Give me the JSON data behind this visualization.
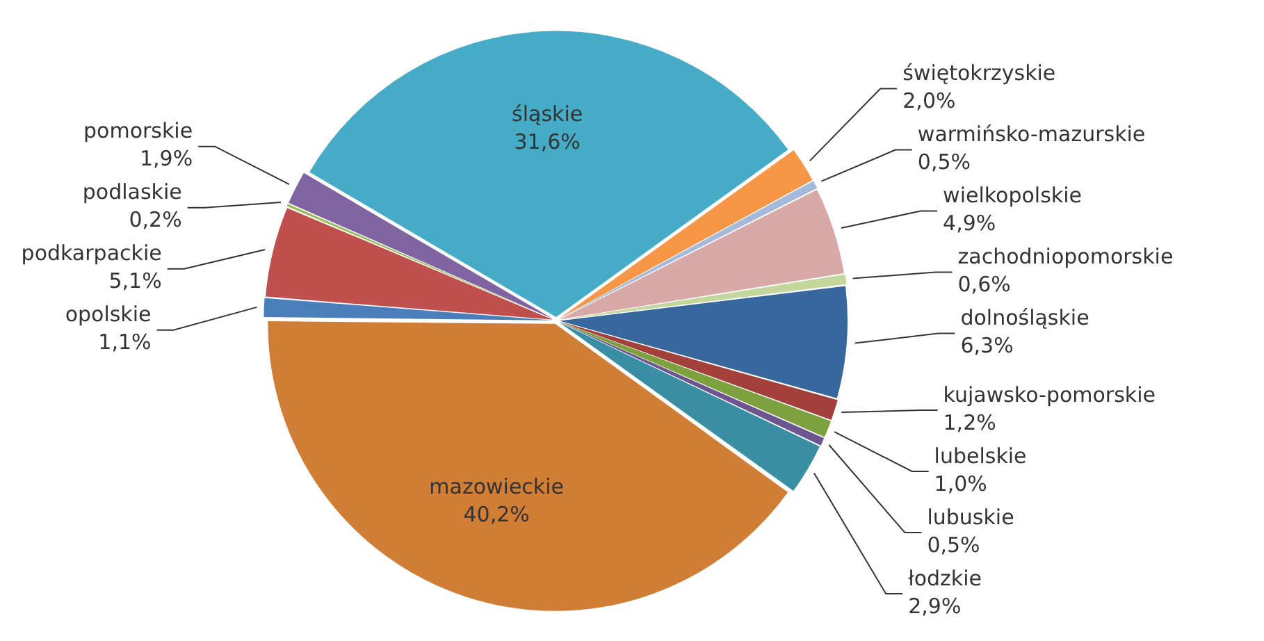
{
  "chart_data": {
    "type": "pie",
    "categories": [
      "dolnośląskie",
      "kujawsko-pomorskie",
      "lubelskie",
      "lubuskie",
      "łodzkie",
      "mazowieckie",
      "opolskie",
      "podkarpackie",
      "podlaskie",
      "pomorskie",
      "śląskie",
      "świętokrzyskie",
      "warmińsko-mazurskie",
      "wielkopolskie",
      "zachodniopomorskie"
    ],
    "values": [
      6.3,
      1.2,
      1.0,
      0.5,
      2.9,
      40.2,
      1.1,
      5.1,
      0.2,
      1.9,
      31.6,
      2.0,
      0.5,
      4.9,
      0.6
    ],
    "value_labels": [
      "6,3%",
      "1,2%",
      "1,0%",
      "0,5%",
      "2,9%",
      "40,2%",
      "1,1%",
      "5,1%",
      "0,2%",
      "1,9%",
      "31,6%",
      "2,0%",
      "0,5%",
      "4,9%",
      "0,6%"
    ],
    "colors": [
      "#37679c",
      "#a4403c",
      "#7ea13f",
      "#6d558f",
      "#3a8ea4",
      "#d07d36",
      "#4a7ebb",
      "#c0504d",
      "#9bbb59",
      "#8064a2",
      "#45abc6",
      "#f79646",
      "#a5b9dd",
      "#d9a9a8",
      "#c3d69b"
    ]
  }
}
